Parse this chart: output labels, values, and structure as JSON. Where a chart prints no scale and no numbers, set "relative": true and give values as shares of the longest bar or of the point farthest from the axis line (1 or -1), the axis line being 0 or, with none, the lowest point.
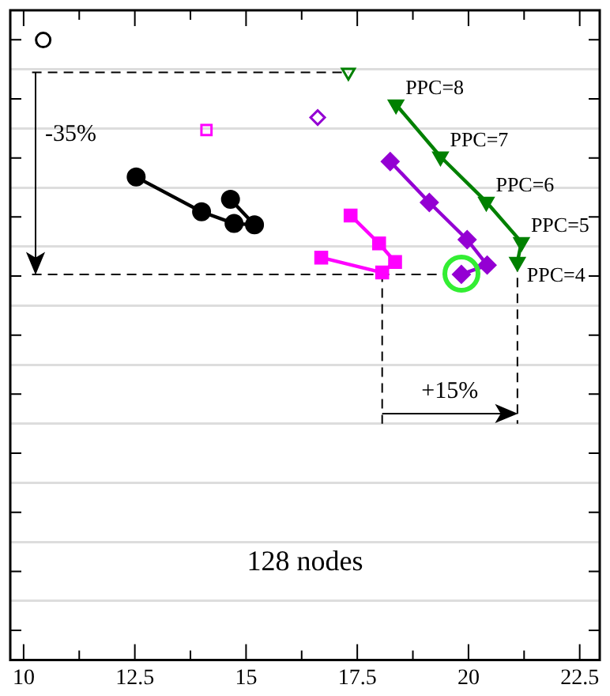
{
  "chart_data": {
    "type": "line",
    "xlim": [
      9.7,
      22.95
    ],
    "xticks": [
      10,
      {
        "value": 11.25,
        "label": null
      },
      12.5,
      {
        "value": 13.75,
        "label": null
      },
      15,
      {
        "value": 16.25,
        "label": null
      },
      17.5,
      {
        "value": 18.75,
        "label": null
      },
      20,
      {
        "value": 21.25,
        "label": null
      },
      22.5
    ],
    "relative": true,
    "grid": "y",
    "tick_labels": "x",
    "legend": false,
    "series": [
      {
        "type": "scatter",
        "color": "#000000",
        "marker": "circle",
        "x": [
          10.44
        ],
        "values": [
          1
        ]
      },
      {
        "color": "#000000",
        "marker": "circle",
        "x": [
          12.53,
          14.0,
          14.73,
          15.19,
          14.65
        ],
        "values": [
          0.779,
          0.723,
          0.704,
          0.702,
          0.743
        ]
      },
      {
        "type": "scatter",
        "color": "#ff00ff",
        "marker": "square",
        "x": [
          14.11
        ],
        "values": [
          0.855
        ]
      },
      {
        "color": "#ff00ff",
        "marker": "square",
        "x": [
          17.35,
          17.99,
          18.35,
          18.06,
          16.69
        ],
        "values": [
          0.717,
          0.672,
          0.642,
          0.625,
          0.649
        ]
      },
      {
        "type": "scatter",
        "color": "#9400d3",
        "marker": "diamond",
        "x": [
          16.61
        ],
        "values": [
          0.875
        ]
      },
      {
        "color": "#9400d3",
        "marker": "diamond",
        "x": [
          18.24,
          19.12,
          19.97,
          20.42,
          19.84
        ],
        "values": [
          0.804,
          0.738,
          0.678,
          0.637,
          0.622
        ]
      },
      {
        "type": "scatter",
        "color": "#008000",
        "marker": "triangle",
        "x": [
          17.3
        ],
        "values": [
          0.948
        ]
      },
      {
        "color": "#008000",
        "marker": "triangle",
        "x": [
          18.37,
          19.37,
          20.4,
          21.19,
          21.1
        ],
        "values": [
          0.896,
          0.812,
          0.739,
          0.674,
          0.642
        ]
      },
      {
        "color": "#000000",
        "marker": "none",
        "line_style": "dashed",
        "x": [
          10.19,
          17.3
        ],
        "values": [
          0.948,
          0.948
        ]
      },
      {
        "color": "#000000",
        "marker": "none",
        "line_style": "dashed",
        "x": [
          10.19,
          19.5
        ],
        "values": [
          0.622,
          0.622
        ]
      },
      {
        "color": "#000000",
        "marker": "none",
        "line_style": "dashed",
        "x": [
          18.06,
          18.06
        ],
        "values": [
          0.625,
          0.381
        ]
      },
      {
        "color": "#000000",
        "marker": "none",
        "line_style": "dashed",
        "x": [
          21.1,
          21.1
        ],
        "values": [
          0.642,
          0.381
        ]
      }
    ],
    "annotations": [
      "-35%",
      "+15%",
      "128 nodes",
      {
        "text": "PPC=8",
        "x": 18.37,
        "y": 0.896
      },
      {
        "text": "PPC=7",
        "x": 19.37,
        "y": 0.812
      },
      {
        "text": "PPC=6",
        "x": 20.4,
        "y": 0.739
      },
      {
        "text": "PPC=5",
        "x": 21.19,
        "y": 0.674
      },
      {
        "text": "PPC=4",
        "x": 21.1,
        "y": 0.642
      }
    ]
  }
}
